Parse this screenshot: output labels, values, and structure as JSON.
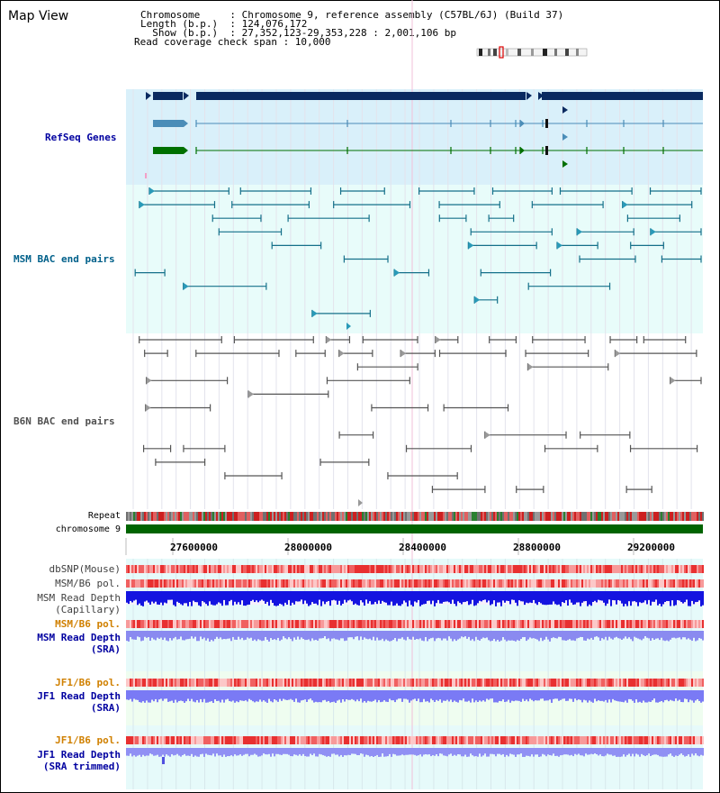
{
  "map_view": {
    "title": "Map View",
    "info_lines": [
      "Chromosome     : Chromosome 9, reference assembly (C57BL/6J) (Build 37)",
      "Length (b.p.)  : 124,076,172",
      "  Show (b.p.)  : 27,352,123-29,353,228 : 2,001,106 bp",
      "Read coverage check span : 10,000"
    ]
  },
  "tracks": {
    "refseq": "RefSeq Genes",
    "msm_bac": "MSM BAC end pairs",
    "b6n_bac": "B6N BAC end pairs",
    "repeat": "Repeat",
    "chromosome": "chromosome 9"
  },
  "axis": {
    "ticks": [
      "27600000",
      "28000000",
      "28400000",
      "28800000",
      "29200000"
    ]
  },
  "lower_tracks": {
    "dbsnp": "dbSNP(Mouse)",
    "msm_b6_pol_1": "MSM/B6 pol.",
    "msm_read_depth_cap_1": "MSM Read Depth",
    "msm_read_depth_cap_2": "(Capillary)",
    "msm_b6_pol_2": "MSM/B6 pol.",
    "msm_read_depth_sra_1": "MSM Read Depth",
    "msm_read_depth_sra_2": "(SRA)",
    "jf1_b6_pol_1": "JF1/B6 pol.",
    "jf1_read_depth_sra_1": "JF1 Read Depth",
    "jf1_read_depth_sra_2": "(SRA)",
    "jf1_b6_pol_2": "JF1/B6 pol.",
    "jf1_read_depth_trim_1": "JF1 Read Depth",
    "jf1_read_depth_trim_2": "(SRA trimmed)"
  },
  "colors": {
    "refseq_bg": "#d9f0fa",
    "msm_bg": "#e8fcfa",
    "b6n_bg": "#ffffff",
    "refseq_label": "#0000a0",
    "msm_label": "#00608a",
    "b6n_label": "#505050",
    "dark_blue": "#0a2a60",
    "steel": "#4a8db8",
    "green": "#007000",
    "pol_orange": "#d08000"
  }
}
